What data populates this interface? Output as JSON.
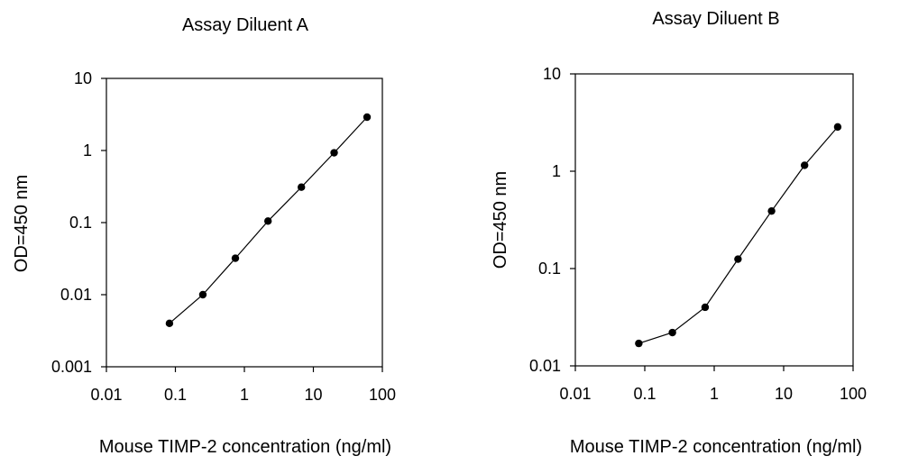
{
  "chart_data": [
    {
      "type": "line",
      "title": "Assay Diluent A",
      "xlabel": "Mouse TIMP-2 concentration (ng/ml)",
      "ylabel": "OD=450 nm",
      "x_scale": "log",
      "y_scale": "log",
      "xlim": [
        0.01,
        100
      ],
      "ylim": [
        0.001,
        10
      ],
      "x_ticks": [
        "0.01",
        "0.1",
        "1",
        "10",
        "100"
      ],
      "y_ticks": [
        "0.001",
        "0.01",
        "0.1",
        "1",
        "10"
      ],
      "grid": false,
      "legend": "none",
      "series": [
        {
          "x": [
            0.082,
            0.25,
            0.74,
            2.2,
            6.7,
            20,
            60
          ],
          "y": [
            0.004,
            0.01,
            0.032,
            0.105,
            0.31,
            0.93,
            2.9
          ]
        }
      ]
    },
    {
      "type": "line",
      "title": "Assay Diluent B",
      "xlabel": "Mouse TIMP-2 concentration (ng/ml)",
      "ylabel": "OD=450 nm",
      "x_scale": "log",
      "y_scale": "log",
      "xlim": [
        0.01,
        100
      ],
      "ylim": [
        0.01,
        10
      ],
      "x_ticks": [
        "0.01",
        "0.1",
        "1",
        "10",
        "100"
      ],
      "y_ticks": [
        "0.01",
        "0.1",
        "1",
        "10"
      ],
      "grid": false,
      "legend": "none",
      "series": [
        {
          "x": [
            0.082,
            0.25,
            0.74,
            2.2,
            6.7,
            20,
            60
          ],
          "y": [
            0.017,
            0.022,
            0.04,
            0.125,
            0.39,
            1.15,
            2.85
          ]
        }
      ]
    }
  ]
}
